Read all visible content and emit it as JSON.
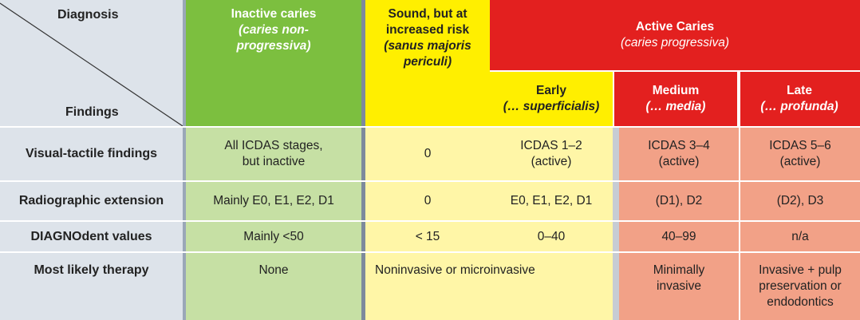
{
  "corner": {
    "top_label": "Diagnosis",
    "bottom_label": "Findings"
  },
  "columns": {
    "inactive": {
      "title": "Inactive caries",
      "subtitle": "(caries non-progressiva)"
    },
    "sound": {
      "title": "Sound, but at increased risk",
      "subtitle": "(sanus majoris periculi)"
    },
    "active": {
      "title": "Active Caries",
      "subtitle": "(caries progressiva)"
    },
    "early": {
      "title": "Early",
      "subtitle": "(… superficialis)"
    },
    "medium": {
      "title": "Medium",
      "subtitle": "(… media)"
    },
    "late": {
      "title": "Late",
      "subtitle": "(… profunda)"
    }
  },
  "rows": [
    {
      "label": "Visual-tactile findings",
      "inactive": "All ICDAS stages, but inactive",
      "sound": "0",
      "early": "ICDAS 1–2 (active)",
      "medium": "ICDAS 3–4 (active)",
      "late": "ICDAS 5–6 (active)"
    },
    {
      "label": "Radiographic extension",
      "inactive": "Mainly E0, E1, E2, D1",
      "sound": "0",
      "early": "E0, E1, E2, D1",
      "medium": "(D1), D2",
      "late": "(D2), D3"
    },
    {
      "label": "DIAGNOdent values",
      "inactive": "Mainly <50",
      "sound": "< 15",
      "early": "0–40",
      "medium": "40–99",
      "late": "n/a"
    },
    {
      "label": "Most likely therapy",
      "inactive": "None",
      "sound_early": "Noninvasive or microinvasive",
      "medium": "Minimally invasive",
      "late": "Invasive + pulp preservation or endodontics"
    }
  ],
  "colors": {
    "inactive_header": "#7cbf3f",
    "inactive_body": "#c6e0a4",
    "sound_header": "#ffef00",
    "sound_body": "#fff6a7",
    "active_header": "#e3201f",
    "early_header": "#ffef00",
    "early_body": "#fff6a7",
    "medium_late_header": "#e3201f",
    "medium_late_body": "#f2a187",
    "findings_header": "#dde3ea",
    "findings_body": "#dde3ea"
  }
}
